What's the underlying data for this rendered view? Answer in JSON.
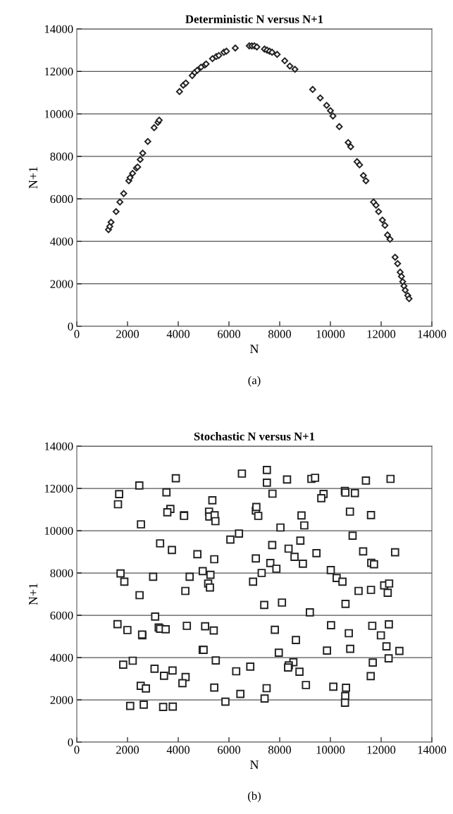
{
  "chart_data": [
    {
      "type": "scatter",
      "title": "Deterministic N versus N+1",
      "xlabel": "N",
      "ylabel": "N+1",
      "annotations": [
        "(a)"
      ],
      "marker": "diamond",
      "grid": "y",
      "legend": false,
      "xlim": [
        0,
        14000
      ],
      "ylim": [
        0,
        14000
      ],
      "xticks": [
        0,
        2000,
        4000,
        6000,
        8000,
        10000,
        12000,
        14000
      ],
      "yticks": [
        0,
        2000,
        4000,
        6000,
        8000,
        10000,
        12000,
        14000
      ],
      "series": [
        {
          "color": "#222222",
          "x": [
            1250,
            1300,
            1350,
            1550,
            1700,
            1850,
            2050,
            2100,
            2200,
            2350,
            2400,
            2500,
            2600,
            2800,
            3050,
            3200,
            3250,
            4050,
            4200,
            4300,
            4550,
            4650,
            4750,
            4900,
            5050,
            5100,
            5350,
            5500,
            5600,
            5800,
            5900,
            6250,
            6800,
            6900,
            7000,
            7100,
            7400,
            7500,
            7600,
            7700,
            7900,
            8200,
            8400,
            8600,
            9300,
            9600,
            9850,
            10000,
            10100,
            10350,
            10700,
            10800,
            11050,
            11150,
            11300,
            11400,
            11700,
            11800,
            11900,
            12050,
            12150,
            12250,
            12350,
            12550,
            12650,
            12750,
            12800,
            12850,
            12900,
            12950,
            13050,
            13100
          ],
          "values": [
            4550,
            4700,
            4900,
            5400,
            5850,
            6250,
            6850,
            7000,
            7200,
            7450,
            7500,
            7850,
            8150,
            8700,
            9350,
            9600,
            9700,
            11050,
            11350,
            11450,
            11800,
            11950,
            12050,
            12200,
            12300,
            12350,
            12600,
            12700,
            12750,
            12900,
            12950,
            13100,
            13200,
            13200,
            13200,
            13150,
            13050,
            13000,
            12950,
            12900,
            12800,
            12500,
            12250,
            12100,
            11150,
            10750,
            10400,
            10150,
            9900,
            9400,
            8650,
            8450,
            7750,
            7600,
            7100,
            6850,
            5850,
            5700,
            5400,
            5000,
            4750,
            4300,
            4100,
            3250,
            2950,
            2550,
            2350,
            2100,
            1900,
            1700,
            1450,
            1300
          ]
        }
      ]
    },
    {
      "type": "scatter",
      "title": "Stochastic N versus N+1",
      "xlabel": "N",
      "ylabel": "N+1",
      "annotations": [
        "(b)"
      ],
      "marker": "square",
      "grid": "y",
      "legend": false,
      "xlim": [
        0,
        14000
      ],
      "ylim": [
        0,
        14000
      ],
      "xticks": [
        0,
        2000,
        4000,
        6000,
        8000,
        10000,
        12000,
        14000
      ],
      "yticks": [
        0,
        2000,
        4000,
        6000,
        8000,
        10000,
        12000,
        14000
      ],
      "series": [
        {
          "color": "#222222",
          "x": [
            1670,
            1625,
            2465,
            3905,
            3535,
            6510,
            5345,
            3690,
            3570,
            4230,
            4230,
            5215,
            5225,
            5435,
            5465,
            7060,
            7080,
            7155,
            2530,
            3285,
            3750,
            4755,
            5420,
            6055,
            6395,
            7060,
            1725,
            1875,
            3010,
            4450,
            4965,
            5270,
            5180,
            5250,
            4280,
            2475,
            6950,
            3090,
            1605,
            1995,
            2585,
            2575,
            3230,
            3285,
            3505,
            4340,
            5060,
            5400,
            4965,
            5000,
            5480,
            1830,
            2205,
            3065,
            3440,
            3775,
            4290,
            4165,
            2520,
            2725,
            5420,
            6285,
            6840,
            6450,
            5860,
            2105,
            2640,
            3405,
            3785,
            7495,
            7495,
            8290,
            9250,
            9395,
            11400,
            12370,
            7715,
            9730,
            9640,
            10570,
            10590,
            10965,
            8860,
            8970,
            8030,
            10770,
            11600,
            10875,
            7705,
            8350,
            8815,
            9450,
            8585,
            8915,
            7630,
            7870,
            7290,
            11290,
            12550,
            11610,
            11720,
            10015,
            10245,
            10475,
            11110,
            11600,
            12120,
            12315,
            12260,
            7390,
            8090,
            9190,
            10595,
            7810,
            8640,
            7965,
            10025,
            10725,
            10780,
            9865,
            11650,
            12305,
            11990,
            12210,
            12720,
            12295,
            11670,
            11590,
            8540,
            8360,
            8330,
            8780,
            9035,
            10115,
            10615,
            10585,
            10575,
            7485,
            7405
          ],
          "values": [
            11730,
            11250,
            12140,
            12480,
            11810,
            12700,
            11440,
            11030,
            10870,
            10730,
            10700,
            10900,
            10670,
            10730,
            10450,
            10950,
            11120,
            10700,
            10300,
            9400,
            9090,
            8890,
            8650,
            9580,
            9860,
            8690,
            7980,
            7590,
            7820,
            7820,
            8090,
            7910,
            7500,
            7310,
            7150,
            6950,
            7590,
            5940,
            5580,
            5300,
            5050,
            5090,
            5420,
            5360,
            5340,
            5500,
            5480,
            5280,
            4360,
            4360,
            3860,
            3660,
            3850,
            3470,
            3140,
            3390,
            3080,
            2790,
            2660,
            2540,
            2580,
            3350,
            3570,
            2280,
            1910,
            1710,
            1770,
            1660,
            1680,
            12870,
            12270,
            12420,
            12450,
            12500,
            12370,
            12450,
            11750,
            11740,
            11540,
            11880,
            11800,
            11780,
            10720,
            10250,
            10150,
            10900,
            10740,
            9760,
            9320,
            9150,
            9530,
            8940,
            8760,
            8440,
            8470,
            8200,
            8000,
            9020,
            8980,
            8480,
            8410,
            8140,
            7760,
            7590,
            7150,
            7200,
            7410,
            7500,
            7060,
            6490,
            6600,
            6140,
            6540,
            5310,
            4830,
            4230,
            5530,
            5150,
            4410,
            4330,
            5500,
            5570,
            5050,
            4530,
            4310,
            3960,
            3760,
            3120,
            3780,
            3630,
            3530,
            3330,
            2700,
            2620,
            2570,
            2180,
            1860,
            2550,
            2060
          ]
        }
      ]
    }
  ]
}
